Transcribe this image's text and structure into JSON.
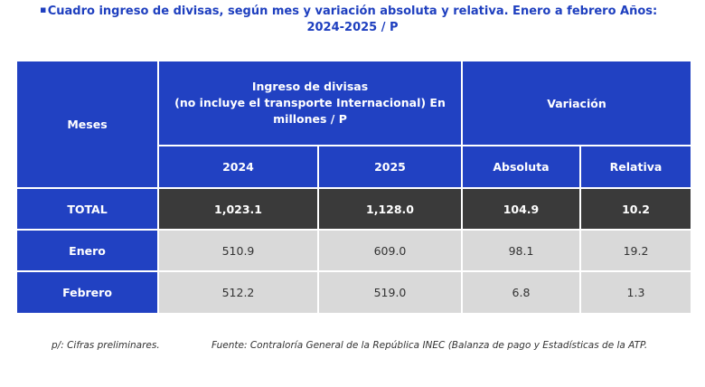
{
  "title": "Cuadro ingreso de divisas, según mes y variación absoluta y relativa. Enero a febrero Años: 2024-2025 / P",
  "table": {
    "header": {
      "months": "Meses",
      "income": [
        "Ingreso de divisas",
        "(no incluye el transporte Internacional) En",
        "millones / P"
      ],
      "variation": "Variación",
      "sub": [
        "2024",
        "2025",
        "Absoluta",
        "Relativa"
      ]
    },
    "rows": [
      [
        "TOTAL",
        "1,023.1",
        "1,128.0",
        "104.9",
        "10.2"
      ],
      [
        "Enero",
        "510.9",
        "609.0",
        "98.1",
        "19.2"
      ],
      [
        "Febrero",
        "512.2",
        "519.0",
        "6.8",
        "1.3"
      ]
    ]
  },
  "notes": {
    "preliminary": "p/: Cifras preliminares.",
    "source": "Fuente: Contraloría General de la República INEC (Balanza de pago y Estadísticas de la ATP."
  }
}
